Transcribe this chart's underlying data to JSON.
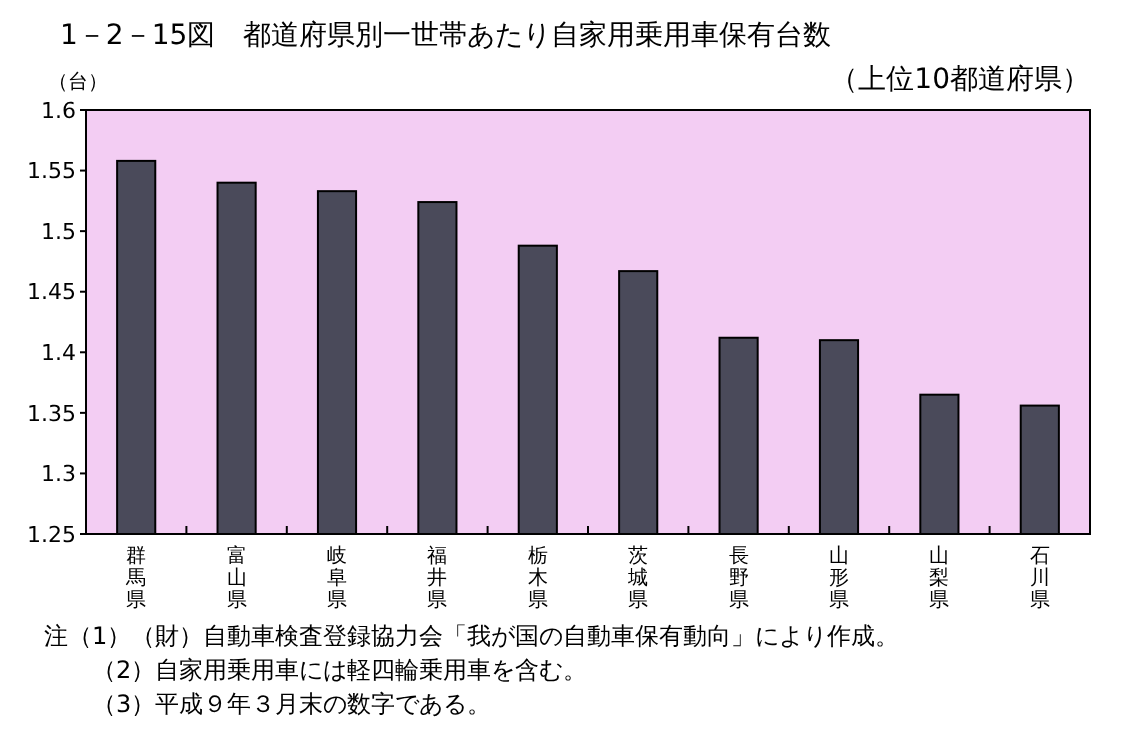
{
  "chart_data": {
    "type": "bar",
    "title": "1－2－15図　都道府県別一世帯あたり自家用乗用車保有台数",
    "subtitle": "（上位10都道府県）",
    "ylabel": "（台）",
    "categories": [
      "群馬県",
      "富山県",
      "岐阜県",
      "福井県",
      "栃木県",
      "茨城県",
      "長野県",
      "山形県",
      "山梨県",
      "石川県"
    ],
    "values": [
      1.558,
      1.54,
      1.533,
      1.524,
      1.488,
      1.467,
      1.412,
      1.41,
      1.365,
      1.356
    ],
    "color": "#4a4a5a",
    "ylim": [
      1.25,
      1.6
    ],
    "yticks": [
      1.25,
      1.3,
      1.35,
      1.4,
      1.45,
      1.5,
      1.55,
      1.6
    ],
    "grid": false,
    "annotations": [
      "注（1）（財）自動車検査登録協力会「我が国の自動車保有動向」により作成。",
      "（2）自家用乗用車には軽四輪乗用車を含む。",
      "（3）平成９年３月末の数字である。"
    ]
  }
}
